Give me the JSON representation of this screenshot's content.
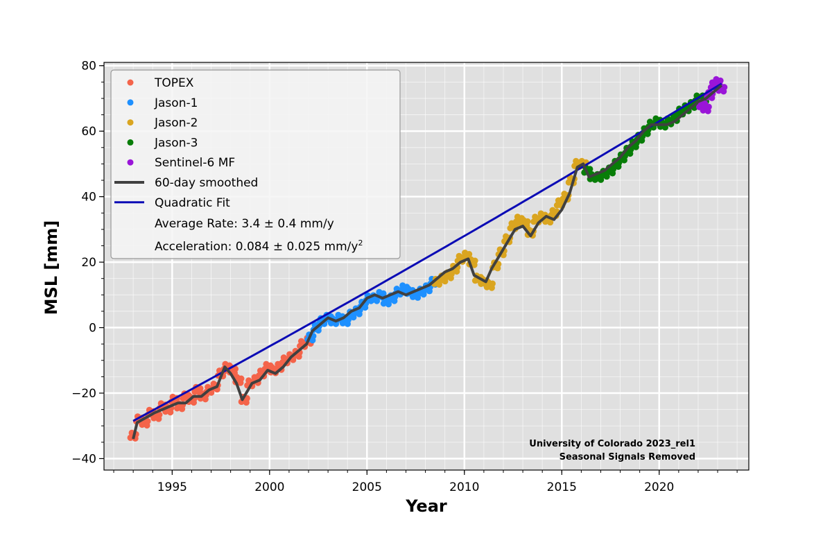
{
  "chart_data": {
    "type": "scatter",
    "xlabel": "Year",
    "ylabel": "MSL [mm]",
    "xlim": [
      1991.5,
      2024.6
    ],
    "ylim": [
      -43.5,
      81
    ],
    "x_ticks": [
      1995,
      2000,
      2005,
      2010,
      2015,
      2020
    ],
    "y_ticks": [
      -40,
      -20,
      0,
      20,
      40,
      60,
      80
    ],
    "grid": true,
    "legend_position": "top-left",
    "background_color": "#e0e0e0",
    "series": [
      {
        "name": "TOPEX",
        "kind": "points",
        "color": "#f4644a",
        "x": [
          1993.0,
          1993.3,
          1993.6,
          1993.9,
          1994.2,
          1994.5,
          1994.8,
          1995.1,
          1995.4,
          1995.7,
          1996.0,
          1996.3,
          1996.6,
          1996.9,
          1997.2,
          1997.5,
          1997.8,
          1998.1,
          1998.4,
          1998.7,
          1999.0,
          1999.3,
          1999.6,
          1999.9,
          2000.2,
          2000.5,
          2000.8,
          2001.1,
          2001.4,
          2001.7,
          2002.0
        ],
        "y": [
          -33,
          -28,
          -29,
          -26,
          -27,
          -24,
          -25,
          -22,
          -24,
          -21,
          -22,
          -19,
          -21,
          -19,
          -18,
          -14,
          -12,
          -13,
          -16,
          -22,
          -17,
          -16,
          -14,
          -12,
          -13,
          -12,
          -10,
          -9,
          -8,
          -5,
          -4
        ]
      },
      {
        "name": "Jason-1",
        "kind": "points",
        "color": "#1e90ff",
        "x": [
          2002.1,
          2002.4,
          2002.7,
          2003.0,
          2003.3,
          2003.6,
          2003.9,
          2004.2,
          2004.5,
          2004.8,
          2005.1,
          2005.4,
          2005.7,
          2006.0,
          2006.3,
          2006.6,
          2006.9,
          2007.2,
          2007.5,
          2007.8,
          2008.1,
          2008.4
        ],
        "y": [
          -3,
          0,
          2,
          3,
          2,
          3,
          2,
          4,
          5,
          7,
          9,
          9,
          10,
          8,
          9,
          11,
          12,
          11,
          10,
          11,
          12,
          14
        ]
      },
      {
        "name": "Jason-2",
        "kind": "points",
        "color": "#daa520",
        "x": [
          2008.6,
          2008.9,
          2009.2,
          2009.5,
          2009.8,
          2010.1,
          2010.4,
          2010.7,
          2011.0,
          2011.3,
          2011.6,
          2011.9,
          2012.2,
          2012.5,
          2012.8,
          2013.1,
          2013.4,
          2013.7,
          2014.0,
          2014.3,
          2014.6,
          2014.9,
          2015.2,
          2015.5,
          2015.8,
          2016.1
        ],
        "y": [
          14,
          15,
          16,
          18,
          21,
          22,
          20,
          15,
          14,
          13,
          19,
          23,
          27,
          31,
          33,
          32,
          29,
          33,
          34,
          33,
          35,
          38,
          40,
          45,
          50,
          50
        ]
      },
      {
        "name": "Jason-3",
        "kind": "points",
        "color": "#087d08",
        "x": [
          2016.3,
          2016.6,
          2016.9,
          2017.2,
          2017.5,
          2017.8,
          2018.1,
          2018.4,
          2018.7,
          2019.0,
          2019.3,
          2019.6,
          2019.9,
          2020.2,
          2020.5,
          2020.8,
          2021.1,
          2021.4,
          2021.7,
          2022.0,
          2022.3
        ],
        "y": [
          48,
          46,
          46,
          47,
          48,
          50,
          52,
          54,
          56,
          58,
          60,
          62,
          63,
          62,
          63,
          64,
          66,
          67,
          68,
          70,
          70
        ]
      },
      {
        "name": "Sentinel-6 MF",
        "kind": "points",
        "color": "#9a15d8",
        "x": [
          2022.2,
          2022.4,
          2022.6,
          2022.8,
          2023.0,
          2023.2
        ],
        "y": [
          68,
          67,
          71,
          74,
          75,
          73
        ]
      },
      {
        "name": "60-day smoothed",
        "kind": "line",
        "color": "#404040",
        "x": [
          1993.0,
          1993.2,
          1993.5,
          1993.8,
          1994.1,
          1994.5,
          1994.9,
          1995.3,
          1995.7,
          1996.1,
          1996.5,
          1996.9,
          1997.3,
          1997.7,
          1998.0,
          1998.3,
          1998.6,
          1998.8,
          1999.1,
          1999.5,
          1999.9,
          2000.3,
          2000.7,
          2001.1,
          2001.5,
          2001.9,
          2002.2,
          2002.6,
          2003.0,
          2003.4,
          2003.8,
          2004.2,
          2004.6,
          2005.0,
          2005.4,
          2005.8,
          2006.2,
          2006.6,
          2007.0,
          2007.4,
          2007.8,
          2008.2,
          2008.6,
          2009.0,
          2009.4,
          2009.8,
          2010.2,
          2010.5,
          2010.8,
          2011.1,
          2011.4,
          2011.8,
          2012.2,
          2012.6,
          2013.0,
          2013.4,
          2013.8,
          2014.2,
          2014.6,
          2015.0,
          2015.4,
          2015.8,
          2016.1,
          2016.4,
          2016.8,
          2017.2,
          2017.6,
          2018.0,
          2018.4,
          2018.8,
          2019.2,
          2019.6,
          2020.0,
          2020.4,
          2020.8,
          2021.2,
          2021.6,
          2022.0,
          2022.4,
          2022.8,
          2023.2
        ],
        "y": [
          -34,
          -29,
          -28,
          -27,
          -26,
          -25,
          -24,
          -23,
          -23,
          -21,
          -21,
          -19,
          -18,
          -12,
          -14,
          -17,
          -22,
          -20,
          -17,
          -16,
          -13,
          -14,
          -12,
          -9,
          -7,
          -5,
          -1,
          1,
          3,
          2,
          3,
          5,
          6,
          9,
          10,
          9,
          10,
          11,
          10,
          11,
          12,
          13,
          15,
          17,
          18,
          20,
          21,
          16,
          15,
          14,
          18,
          22,
          26,
          30,
          31,
          28,
          32,
          34,
          33,
          36,
          41,
          49,
          50,
          46,
          47,
          48,
          50,
          52,
          55,
          57,
          60,
          62,
          62,
          62,
          63,
          65,
          67,
          69,
          70,
          72,
          74
        ]
      },
      {
        "name": "Quadratic Fit",
        "kind": "fit",
        "color": "#0b0bb5",
        "x_range": [
          1993.0,
          2023.2
        ],
        "y_start": -28.5,
        "y_end": 74.5
      }
    ],
    "legend_notes": [
      {
        "text": "Average Rate: 3.4 ± 0.4 mm/y"
      },
      {
        "text": "Acceleration: 0.084 ± 0.025 mm/y",
        "superscript": "2"
      }
    ],
    "annotation": [
      "University of Colorado 2023_rel1",
      "Seasonal Signals Removed"
    ]
  }
}
